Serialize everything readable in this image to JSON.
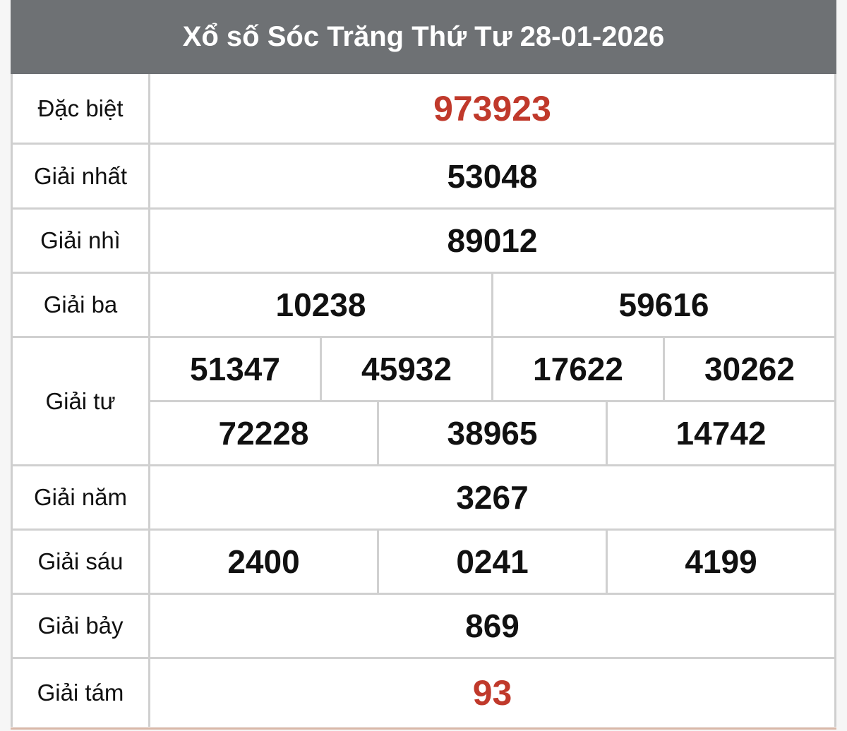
{
  "title": "Xổ số Sóc Trăng Thứ Tư 28-01-2026",
  "colors": {
    "header_bg": "#6e7174",
    "highlight": "#c0392b"
  },
  "prizes": [
    {
      "label": "Đặc biệt",
      "rows": [
        [
          "973923"
        ]
      ],
      "highlight": true
    },
    {
      "label": "Giải nhất",
      "rows": [
        [
          "53048"
        ]
      ]
    },
    {
      "label": "Giải nhì",
      "rows": [
        [
          "89012"
        ]
      ]
    },
    {
      "label": "Giải ba",
      "rows": [
        [
          "10238",
          "59616"
        ]
      ]
    },
    {
      "label": "Giải tư",
      "rows": [
        [
          "51347",
          "45932",
          "17622",
          "30262"
        ],
        [
          "72228",
          "38965",
          "14742"
        ]
      ]
    },
    {
      "label": "Giải năm",
      "rows": [
        [
          "3267"
        ]
      ]
    },
    {
      "label": "Giải sáu",
      "rows": [
        [
          "2400",
          "0241",
          "4199"
        ]
      ]
    },
    {
      "label": "Giải bảy",
      "rows": [
        [
          "869"
        ]
      ]
    },
    {
      "label": "Giải tám",
      "rows": [
        [
          "93"
        ]
      ],
      "highlight": true
    }
  ]
}
